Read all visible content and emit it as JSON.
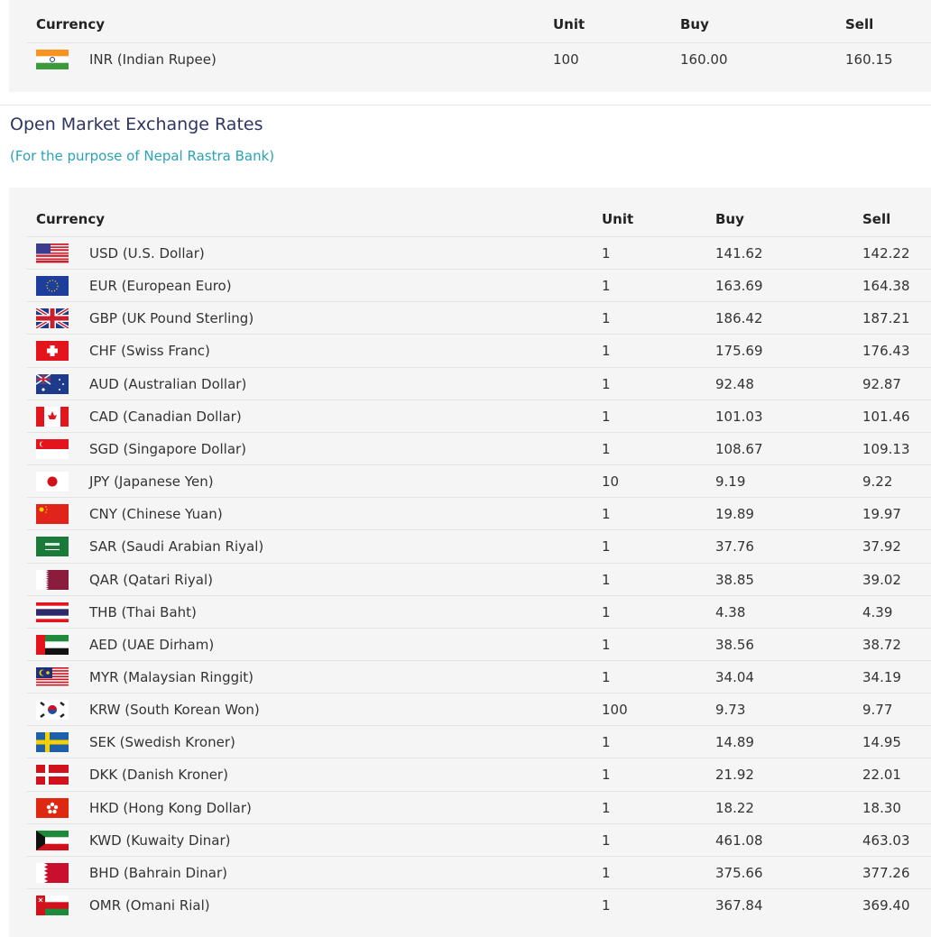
{
  "top_table": {
    "headers": {
      "currency": "Currency",
      "unit": "Unit",
      "buy": "Buy",
      "sell": "Sell"
    },
    "rows": [
      {
        "flag": "IN",
        "currency": "INR (Indian Rupee)",
        "unit": "100",
        "buy": "160.00",
        "sell": "160.15"
      }
    ]
  },
  "section": {
    "title": "Open Market Exchange Rates",
    "subtitle": "(For the purpose of Nepal Rastra Bank)"
  },
  "rates_table": {
    "headers": {
      "currency": "Currency",
      "unit": "Unit",
      "buy": "Buy",
      "sell": "Sell"
    },
    "rows": [
      {
        "flag": "US",
        "currency": "USD (U.S. Dollar)",
        "unit": "1",
        "buy": "141.62",
        "sell": "142.22"
      },
      {
        "flag": "EU",
        "currency": "EUR (European Euro)",
        "unit": "1",
        "buy": "163.69",
        "sell": "164.38"
      },
      {
        "flag": "GB",
        "currency": "GBP (UK Pound Sterling)",
        "unit": "1",
        "buy": "186.42",
        "sell": "187.21"
      },
      {
        "flag": "CH",
        "currency": "CHF (Swiss Franc)",
        "unit": "1",
        "buy": "175.69",
        "sell": "176.43"
      },
      {
        "flag": "AU",
        "currency": "AUD (Australian Dollar)",
        "unit": "1",
        "buy": "92.48",
        "sell": "92.87"
      },
      {
        "flag": "CA",
        "currency": "CAD (Canadian Dollar)",
        "unit": "1",
        "buy": "101.03",
        "sell": "101.46"
      },
      {
        "flag": "SG",
        "currency": "SGD (Singapore Dollar)",
        "unit": "1",
        "buy": "108.67",
        "sell": "109.13"
      },
      {
        "flag": "JP",
        "currency": "JPY (Japanese Yen)",
        "unit": "10",
        "buy": "9.19",
        "sell": "9.22"
      },
      {
        "flag": "CN",
        "currency": "CNY (Chinese Yuan)",
        "unit": "1",
        "buy": "19.89",
        "sell": "19.97"
      },
      {
        "flag": "SA",
        "currency": "SAR (Saudi Arabian Riyal)",
        "unit": "1",
        "buy": "37.76",
        "sell": "37.92"
      },
      {
        "flag": "QA",
        "currency": "QAR (Qatari Riyal)",
        "unit": "1",
        "buy": "38.85",
        "sell": "39.02"
      },
      {
        "flag": "TH",
        "currency": "THB (Thai Baht)",
        "unit": "1",
        "buy": "4.38",
        "sell": "4.39"
      },
      {
        "flag": "AE",
        "currency": "AED (UAE Dirham)",
        "unit": "1",
        "buy": "38.56",
        "sell": "38.72"
      },
      {
        "flag": "MY",
        "currency": "MYR (Malaysian Ringgit)",
        "unit": "1",
        "buy": "34.04",
        "sell": "34.19"
      },
      {
        "flag": "KR",
        "currency": "KRW (South Korean Won)",
        "unit": "100",
        "buy": "9.73",
        "sell": "9.77"
      },
      {
        "flag": "SE",
        "currency": "SEK (Swedish Kroner)",
        "unit": "1",
        "buy": "14.89",
        "sell": "14.95"
      },
      {
        "flag": "DK",
        "currency": "DKK (Danish Kroner)",
        "unit": "1",
        "buy": "21.92",
        "sell": "22.01"
      },
      {
        "flag": "HK",
        "currency": "HKD (Hong Kong Dollar)",
        "unit": "1",
        "buy": "18.22",
        "sell": "18.30"
      },
      {
        "flag": "KW",
        "currency": "KWD (Kuwaity Dinar)",
        "unit": "1",
        "buy": "461.08",
        "sell": "463.03"
      },
      {
        "flag": "BH",
        "currency": "BHD (Bahrain Dinar)",
        "unit": "1",
        "buy": "375.66",
        "sell": "377.26"
      },
      {
        "flag": "OM",
        "currency": "OMR (Omani Rial)",
        "unit": "1",
        "buy": "367.84",
        "sell": "369.40"
      }
    ]
  },
  "colors": {
    "title": "#2d3561",
    "subtitle": "#2aa3b3",
    "panel": "#f5f5f5"
  }
}
